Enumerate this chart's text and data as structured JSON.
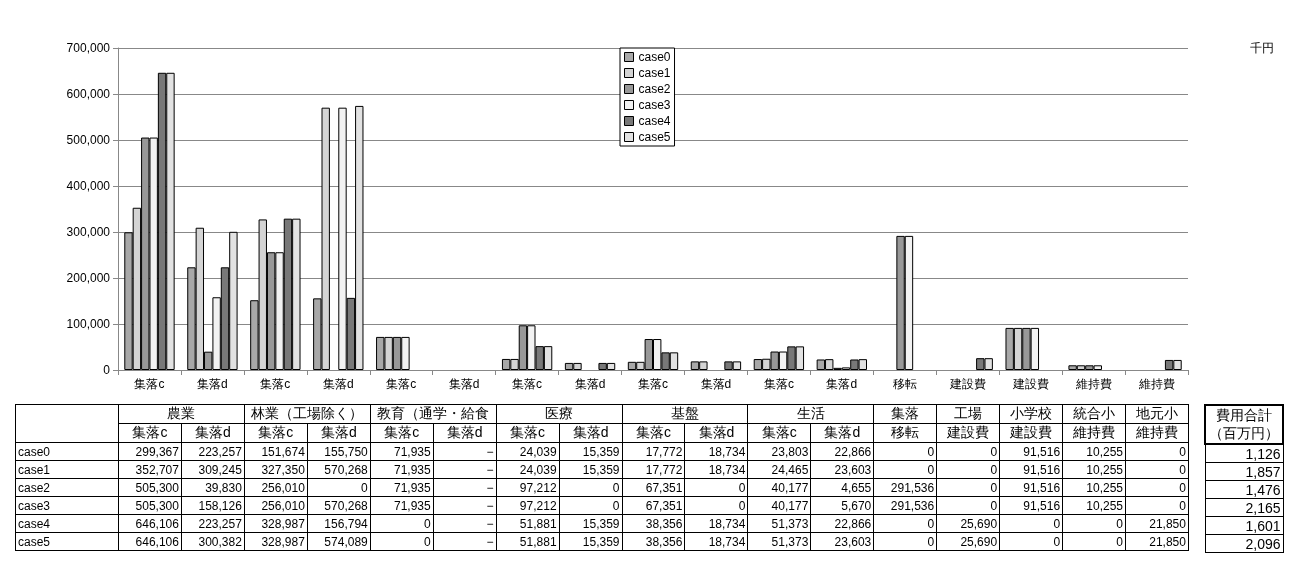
{
  "chart_data": {
    "type": "bar",
    "categories": [
      "集落c",
      "集落d",
      "集落c",
      "集落d",
      "集落c",
      "集落d",
      "集落c",
      "集落d",
      "集落c",
      "集落d",
      "集落c",
      "集落d",
      "移転",
      "建設費",
      "建設費",
      "維持費",
      "維持費"
    ],
    "ylim": [
      0,
      700000
    ],
    "yticks": [
      0,
      {
        "value": 100000,
        "label": "100,000"
      },
      {
        "value": 200000,
        "label": "200,000"
      },
      {
        "value": 300000,
        "label": "300,000"
      },
      {
        "value": 400000,
        "label": "400,000"
      },
      {
        "value": 500000,
        "label": "500,000"
      },
      {
        "value": 600000,
        "label": "600,000"
      },
      {
        "value": 700000,
        "label": "700,000"
      }
    ],
    "grid": "y",
    "legend": "top",
    "annotations": [
      "千円",
      "農業",
      "林業（工場除く）",
      "教育（通学・給食",
      "医療",
      "基盤",
      "生活",
      "集落",
      "工場",
      "小学校",
      "統合小",
      "地元小",
      "費用合計（百万円）",
      "1,126",
      "1,857",
      "1,476",
      "2,165",
      "1,601",
      "2,096"
    ],
    "series": [
      {
        "name": "case0",
        "color": "#a8a8a8",
        "values": [
          299367,
          223257,
          151674,
          155750,
          71935,
          null,
          24039,
          15359,
          17772,
          18734,
          23803,
          22866,
          0,
          0,
          91516,
          10255,
          0
        ],
        "value_labels": [
          "299,367",
          "223,257",
          "151,674",
          "155,750",
          "71,935",
          "−",
          "24,039",
          "15,359",
          "17,772",
          "18,734",
          "23,803",
          "22,866",
          "0",
          "0",
          "91,516",
          "10,255",
          "0"
        ]
      },
      {
        "name": "case1",
        "color": "#d4d4d4",
        "values": [
          352707,
          309245,
          327350,
          570268,
          71935,
          null,
          24039,
          15359,
          17772,
          18734,
          24465,
          23603,
          0,
          0,
          91516,
          10255,
          0
        ],
        "value_labels": [
          "352,707",
          "309,245",
          "327,350",
          "570,268",
          "71,935",
          "−",
          "24,039",
          "15,359",
          "17,772",
          "18,734",
          "24,465",
          "23,603",
          "0",
          "0",
          "91,516",
          "10,255",
          "0"
        ]
      },
      {
        "name": "case2",
        "color": "#989898",
        "values": [
          505300,
          39830,
          256010,
          0,
          71935,
          null,
          97212,
          0,
          67351,
          0,
          40177,
          4655,
          291536,
          0,
          91516,
          10255,
          0
        ],
        "value_labels": [
          "505,300",
          "39,830",
          "256,010",
          "0",
          "71,935",
          "−",
          "97,212",
          "0",
          "67,351",
          "0",
          "40,177",
          "4,655",
          "291,536",
          "0",
          "91,516",
          "10,255",
          "0"
        ]
      },
      {
        "name": "case3",
        "color": "#f2f2f2",
        "values": [
          505300,
          158126,
          256010,
          570268,
          71935,
          null,
          97212,
          0,
          67351,
          0,
          40177,
          5670,
          291536,
          0,
          91516,
          10255,
          0
        ],
        "value_labels": [
          "505,300",
          "158,126",
          "256,010",
          "570,268",
          "71,935",
          "−",
          "97,212",
          "0",
          "67,351",
          "0",
          "40,177",
          "5,670",
          "291,536",
          "0",
          "91,516",
          "10,255",
          "0"
        ]
      },
      {
        "name": "case4",
        "color": "#787878",
        "values": [
          646106,
          223257,
          328987,
          156794,
          0,
          null,
          51881,
          15359,
          38356,
          18734,
          51373,
          22866,
          0,
          25690,
          0,
          0,
          21850
        ],
        "value_labels": [
          "646,106",
          "223,257",
          "328,987",
          "156,794",
          "0",
          "−",
          "51,881",
          "15,359",
          "38,356",
          "18,734",
          "51,373",
          "22,866",
          "0",
          "25,690",
          "0",
          "0",
          "21,850"
        ]
      },
      {
        "name": "case5",
        "color": "#e2e2e2",
        "values": [
          646106,
          300382,
          328987,
          574089,
          0,
          null,
          51881,
          15359,
          38356,
          18734,
          51373,
          23603,
          0,
          25690,
          0,
          0,
          21850
        ],
        "value_labels": [
          "646,106",
          "300,382",
          "328,987",
          "574,089",
          "0",
          "−",
          "51,881",
          "15,359",
          "38,356",
          "18,734",
          "51,373",
          "23,603",
          "0",
          "25,690",
          "0",
          "0",
          "21,850"
        ]
      }
    ]
  }
}
